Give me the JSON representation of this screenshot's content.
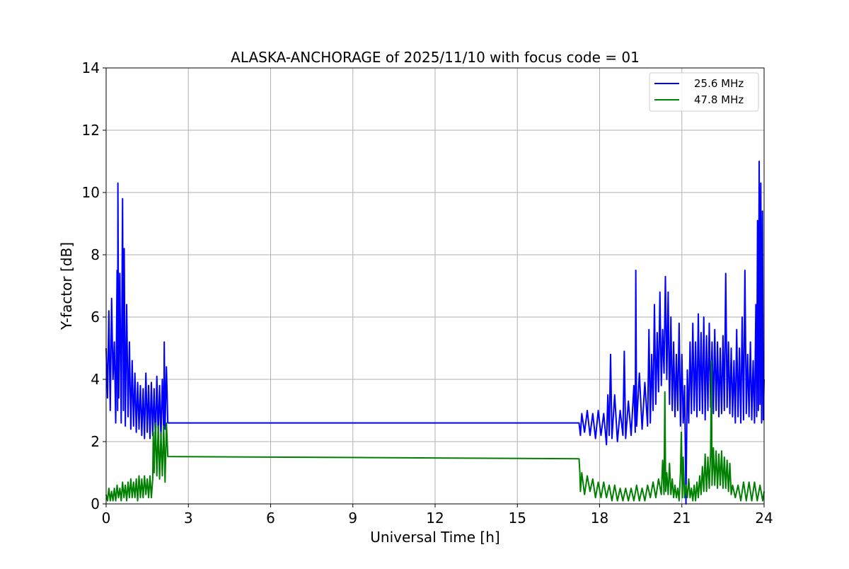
{
  "chart_data": {
    "type": "line",
    "title": "ALASKA-ANCHORAGE of 2025/11/10 with focus code = 01",
    "xlabel": "Universal Time [h]",
    "ylabel": "Y-factor [dB]",
    "xlim": [
      0,
      24
    ],
    "ylim": [
      0,
      14
    ],
    "xticks": [
      0,
      3,
      6,
      9,
      12,
      15,
      18,
      21,
      24
    ],
    "yticks": [
      0,
      2,
      4,
      6,
      8,
      10,
      12,
      14
    ],
    "grid": true,
    "legend_position": "top-right",
    "series": [
      {
        "name": "25.6 MHz",
        "color": "#0000ff",
        "points": [
          [
            0.0,
            5.0
          ],
          [
            0.05,
            3.4
          ],
          [
            0.1,
            6.2
          ],
          [
            0.15,
            3.0
          ],
          [
            0.2,
            6.6
          ],
          [
            0.25,
            4.0
          ],
          [
            0.3,
            5.2
          ],
          [
            0.35,
            2.6
          ],
          [
            0.4,
            7.5
          ],
          [
            0.42,
            3.0
          ],
          [
            0.43,
            10.3
          ],
          [
            0.46,
            3.4
          ],
          [
            0.5,
            7.4
          ],
          [
            0.55,
            2.6
          ],
          [
            0.6,
            9.8
          ],
          [
            0.63,
            3.0
          ],
          [
            0.66,
            8.2
          ],
          [
            0.7,
            2.5
          ],
          [
            0.75,
            6.4
          ],
          [
            0.8,
            2.8
          ],
          [
            0.85,
            5.2
          ],
          [
            0.9,
            2.4
          ],
          [
            0.95,
            4.6
          ],
          [
            1.0,
            2.5
          ],
          [
            1.05,
            4.2
          ],
          [
            1.1,
            2.3
          ],
          [
            1.15,
            3.9
          ],
          [
            1.2,
            2.4
          ],
          [
            1.25,
            3.8
          ],
          [
            1.3,
            2.2
          ],
          [
            1.35,
            3.7
          ],
          [
            1.4,
            2.1
          ],
          [
            1.45,
            4.2
          ],
          [
            1.5,
            2.3
          ],
          [
            1.55,
            3.8
          ],
          [
            1.6,
            2.1
          ],
          [
            1.65,
            3.9
          ],
          [
            1.7,
            2.2
          ],
          [
            1.75,
            3.7
          ],
          [
            1.8,
            2.0
          ],
          [
            1.85,
            4.1
          ],
          [
            1.9,
            2.2
          ],
          [
            1.95,
            3.8
          ],
          [
            2.0,
            2.1
          ],
          [
            2.05,
            4.0
          ],
          [
            2.1,
            2.3
          ],
          [
            2.12,
            5.2
          ],
          [
            2.15,
            2.4
          ],
          [
            2.2,
            4.4
          ],
          [
            2.25,
            2.6
          ],
          [
            17.25,
            2.6
          ],
          [
            17.3,
            2.2
          ],
          [
            17.35,
            2.9
          ],
          [
            17.45,
            2.3
          ],
          [
            17.55,
            3.0
          ],
          [
            17.65,
            2.2
          ],
          [
            17.75,
            2.9
          ],
          [
            17.85,
            2.1
          ],
          [
            17.95,
            3.0
          ],
          [
            18.05,
            2.2
          ],
          [
            18.15,
            2.9
          ],
          [
            18.25,
            1.9
          ],
          [
            18.3,
            3.5
          ],
          [
            18.35,
            2.2
          ],
          [
            18.4,
            4.8
          ],
          [
            18.45,
            2.1
          ],
          [
            18.55,
            3.5
          ],
          [
            18.65,
            2.0
          ],
          [
            18.75,
            3.0
          ],
          [
            18.85,
            2.2
          ],
          [
            18.9,
            4.9
          ],
          [
            18.95,
            2.1
          ],
          [
            19.05,
            3.3
          ],
          [
            19.15,
            2.2
          ],
          [
            19.25,
            3.8
          ],
          [
            19.3,
            2.3
          ],
          [
            19.32,
            7.5
          ],
          [
            19.35,
            2.5
          ],
          [
            19.45,
            4.2
          ],
          [
            19.55,
            2.4
          ],
          [
            19.65,
            3.9
          ],
          [
            19.75,
            2.5
          ],
          [
            19.8,
            5.6
          ],
          [
            19.85,
            2.6
          ],
          [
            19.9,
            4.8
          ],
          [
            19.95,
            3.0
          ],
          [
            20.0,
            6.4
          ],
          [
            20.05,
            3.2
          ],
          [
            20.1,
            5.5
          ],
          [
            20.15,
            3.6
          ],
          [
            20.2,
            6.8
          ],
          [
            20.25,
            3.8
          ],
          [
            20.3,
            5.6
          ],
          [
            20.35,
            4.2
          ],
          [
            20.4,
            7.3
          ],
          [
            20.45,
            4.0
          ],
          [
            20.5,
            6.8
          ],
          [
            20.55,
            3.2
          ],
          [
            20.6,
            6.0
          ],
          [
            20.65,
            3.0
          ],
          [
            20.7,
            5.2
          ],
          [
            20.75,
            2.8
          ],
          [
            20.8,
            4.8
          ],
          [
            20.85,
            3.0
          ],
          [
            20.9,
            5.8
          ],
          [
            20.95,
            2.5
          ],
          [
            21.0,
            4.8
          ],
          [
            21.05,
            2.6
          ],
          [
            21.1,
            3.8
          ],
          [
            21.15,
            0.0
          ],
          [
            21.2,
            4.3
          ],
          [
            21.25,
            2.6
          ],
          [
            21.3,
            5.2
          ],
          [
            21.35,
            2.9
          ],
          [
            21.4,
            5.8
          ],
          [
            21.45,
            3.0
          ],
          [
            21.5,
            5.2
          ],
          [
            21.55,
            2.8
          ],
          [
            21.6,
            6.1
          ],
          [
            21.65,
            3.0
          ],
          [
            21.7,
            5.5
          ],
          [
            21.75,
            2.9
          ],
          [
            21.8,
            6.0
          ],
          [
            21.85,
            2.7
          ],
          [
            21.9,
            5.4
          ],
          [
            21.95,
            3.0
          ],
          [
            22.0,
            5.8
          ],
          [
            22.05,
            3.1
          ],
          [
            22.1,
            5.2
          ],
          [
            22.15,
            2.9
          ],
          [
            22.2,
            5.6
          ],
          [
            22.25,
            3.0
          ],
          [
            22.3,
            5.2
          ],
          [
            22.35,
            2.8
          ],
          [
            22.4,
            5.0
          ],
          [
            22.45,
            2.9
          ],
          [
            22.5,
            5.4
          ],
          [
            22.55,
            3.0
          ],
          [
            22.6,
            7.4
          ],
          [
            22.65,
            3.1
          ],
          [
            22.7,
            5.2
          ],
          [
            22.75,
            2.9
          ],
          [
            22.8,
            5.0
          ],
          [
            22.85,
            2.8
          ],
          [
            22.9,
            4.6
          ],
          [
            22.95,
            2.6
          ],
          [
            23.0,
            5.6
          ],
          [
            23.05,
            2.8
          ],
          [
            23.1,
            5.0
          ],
          [
            23.15,
            2.6
          ],
          [
            23.2,
            6.0
          ],
          [
            23.25,
            2.7
          ],
          [
            23.3,
            7.5
          ],
          [
            23.35,
            2.9
          ],
          [
            23.4,
            4.8
          ],
          [
            23.45,
            2.8
          ],
          [
            23.5,
            5.2
          ],
          [
            23.55,
            2.7
          ],
          [
            23.6,
            4.6
          ],
          [
            23.65,
            2.6
          ],
          [
            23.7,
            6.4
          ],
          [
            23.73,
            2.8
          ],
          [
            23.76,
            9.1
          ],
          [
            23.79,
            3.0
          ],
          [
            23.82,
            11.0
          ],
          [
            23.85,
            3.2
          ],
          [
            23.88,
            10.3
          ],
          [
            23.91,
            2.6
          ],
          [
            23.94,
            9.4
          ],
          [
            23.97,
            2.7
          ],
          [
            24.0,
            4.0
          ]
        ]
      },
      {
        "name": "47.8 MHz",
        "color": "#008000",
        "points": [
          [
            0.0,
            0.3
          ],
          [
            0.05,
            0.1
          ],
          [
            0.1,
            0.5
          ],
          [
            0.15,
            0.1
          ],
          [
            0.2,
            0.4
          ],
          [
            0.25,
            0.1
          ],
          [
            0.3,
            0.5
          ],
          [
            0.35,
            0.1
          ],
          [
            0.4,
            0.6
          ],
          [
            0.45,
            0.2
          ],
          [
            0.5,
            0.5
          ],
          [
            0.55,
            0.1
          ],
          [
            0.6,
            0.7
          ],
          [
            0.65,
            0.2
          ],
          [
            0.7,
            0.6
          ],
          [
            0.75,
            0.1
          ],
          [
            0.8,
            0.7
          ],
          [
            0.85,
            0.2
          ],
          [
            0.9,
            0.8
          ],
          [
            0.95,
            0.2
          ],
          [
            1.0,
            0.7
          ],
          [
            1.05,
            0.2
          ],
          [
            1.1,
            0.8
          ],
          [
            1.15,
            0.1
          ],
          [
            1.2,
            0.9
          ],
          [
            1.25,
            0.2
          ],
          [
            1.3,
            0.8
          ],
          [
            1.35,
            0.2
          ],
          [
            1.4,
            0.9
          ],
          [
            1.45,
            0.3
          ],
          [
            1.5,
            0.8
          ],
          [
            1.55,
            0.2
          ],
          [
            1.6,
            0.9
          ],
          [
            1.65,
            0.2
          ],
          [
            1.7,
            0.8
          ],
          [
            1.72,
            2.3
          ],
          [
            1.75,
            1.0
          ],
          [
            1.8,
            2.6
          ],
          [
            1.85,
            0.9
          ],
          [
            1.9,
            2.5
          ],
          [
            1.95,
            0.8
          ],
          [
            2.0,
            2.3
          ],
          [
            2.05,
            0.9
          ],
          [
            2.1,
            2.5
          ],
          [
            2.15,
            0.7
          ],
          [
            2.2,
            2.6
          ],
          [
            2.25,
            1.52
          ],
          [
            17.25,
            1.45
          ],
          [
            17.28,
            1.0
          ],
          [
            17.3,
            0.4
          ],
          [
            17.35,
            1.0
          ],
          [
            17.45,
            0.3
          ],
          [
            17.55,
            0.9
          ],
          [
            17.65,
            0.4
          ],
          [
            17.75,
            0.8
          ],
          [
            17.85,
            0.2
          ],
          [
            17.95,
            0.7
          ],
          [
            18.05,
            0.2
          ],
          [
            18.15,
            0.7
          ],
          [
            18.25,
            0.2
          ],
          [
            18.35,
            0.6
          ],
          [
            18.45,
            0.1
          ],
          [
            18.55,
            0.6
          ],
          [
            18.65,
            0.1
          ],
          [
            18.75,
            0.5
          ],
          [
            18.85,
            0.1
          ],
          [
            18.95,
            0.5
          ],
          [
            19.05,
            0.1
          ],
          [
            19.15,
            0.5
          ],
          [
            19.25,
            0.1
          ],
          [
            19.35,
            0.6
          ],
          [
            19.45,
            0.1
          ],
          [
            19.55,
            0.5
          ],
          [
            19.65,
            0.1
          ],
          [
            19.75,
            0.6
          ],
          [
            19.85,
            0.2
          ],
          [
            19.95,
            0.7
          ],
          [
            20.05,
            0.2
          ],
          [
            20.15,
            0.8
          ],
          [
            20.25,
            0.3
          ],
          [
            20.3,
            1.4
          ],
          [
            20.35,
            0.3
          ],
          [
            20.38,
            3.6
          ],
          [
            20.41,
            0.4
          ],
          [
            20.45,
            1.0
          ],
          [
            20.5,
            0.3
          ],
          [
            20.55,
            1.3
          ],
          [
            20.6,
            0.3
          ],
          [
            20.65,
            0.8
          ],
          [
            20.7,
            0.2
          ],
          [
            20.75,
            0.6
          ],
          [
            20.8,
            0.2
          ],
          [
            20.85,
            0.5
          ],
          [
            20.9,
            0.1
          ],
          [
            20.95,
            1.0
          ],
          [
            20.98,
            2.3
          ],
          [
            21.02,
            0.2
          ],
          [
            21.05,
            1.5
          ],
          [
            21.1,
            0.2
          ],
          [
            21.15,
            0.6
          ],
          [
            21.2,
            0.2
          ],
          [
            21.25,
            0.8
          ],
          [
            21.3,
            0.2
          ],
          [
            21.35,
            0.5
          ],
          [
            21.4,
            0.1
          ],
          [
            21.45,
            0.6
          ],
          [
            21.5,
            0.1
          ],
          [
            21.55,
            0.7
          ],
          [
            21.6,
            0.2
          ],
          [
            21.65,
            0.9
          ],
          [
            21.7,
            0.3
          ],
          [
            21.75,
            1.2
          ],
          [
            21.8,
            0.4
          ],
          [
            21.85,
            1.6
          ],
          [
            21.9,
            0.4
          ],
          [
            21.95,
            1.5
          ],
          [
            22.0,
            0.5
          ],
          [
            22.05,
            1.7
          ],
          [
            22.08,
            4.6
          ],
          [
            22.1,
            0.6
          ],
          [
            22.15,
            1.8
          ],
          [
            22.2,
            0.6
          ],
          [
            22.25,
            1.7
          ],
          [
            22.3,
            0.5
          ],
          [
            22.35,
            1.6
          ],
          [
            22.4,
            0.6
          ],
          [
            22.45,
            1.7
          ],
          [
            22.5,
            0.5
          ],
          [
            22.55,
            1.5
          ],
          [
            22.6,
            0.5
          ],
          [
            22.65,
            1.4
          ],
          [
            22.7,
            0.4
          ],
          [
            22.75,
            1.3
          ],
          [
            22.8,
            0.3
          ],
          [
            22.85,
            0.6
          ],
          [
            22.95,
            0.2
          ],
          [
            23.05,
            0.6
          ],
          [
            23.15,
            0.1
          ],
          [
            23.25,
            0.7
          ],
          [
            23.35,
            0.1
          ],
          [
            23.45,
            0.7
          ],
          [
            23.55,
            0.1
          ],
          [
            23.65,
            0.7
          ],
          [
            23.75,
            0.1
          ],
          [
            23.85,
            0.6
          ],
          [
            23.95,
            0.1
          ],
          [
            24.0,
            0.4
          ]
        ]
      }
    ]
  }
}
